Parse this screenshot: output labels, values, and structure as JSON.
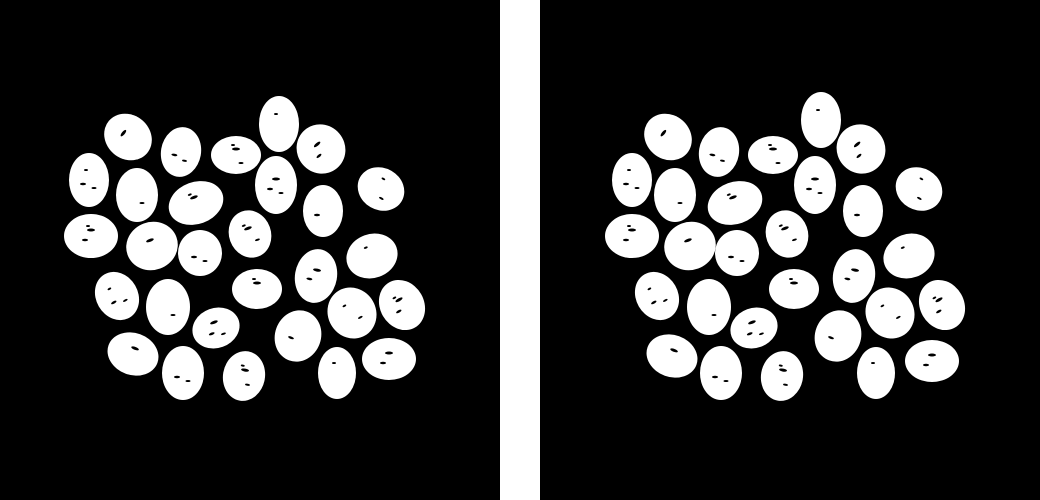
{
  "images": [
    {
      "panel": "left",
      "object": "grain",
      "count": 29,
      "fill_color": "#ffffff",
      "background_color": "#000000"
    },
    {
      "panel": "right",
      "object": "grain",
      "count": 29,
      "fill_color": "#ffffff",
      "background_color": "#000000"
    }
  ],
  "separator_color": "#ffffff"
}
